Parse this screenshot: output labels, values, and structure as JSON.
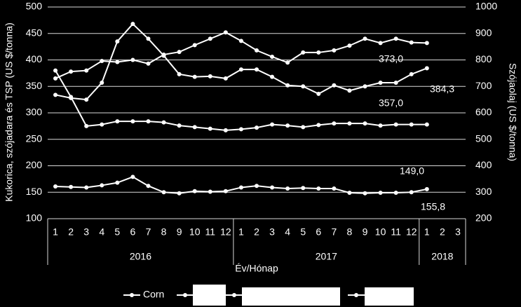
{
  "chart_data": {
    "type": "line",
    "y_label": "Kukorica, szójadara és TSP (US $/tonna)",
    "y2_label": "Szójaolaj (US $/tonna)",
    "x_label": "Év/Hónap",
    "categories": [
      "1",
      "2",
      "3",
      "4",
      "5",
      "6",
      "7",
      "8",
      "9",
      "10",
      "11",
      "12",
      "1",
      "2",
      "3",
      "4",
      "5",
      "6",
      "7",
      "8",
      "9",
      "10",
      "11",
      "12",
      "1",
      "2",
      "3"
    ],
    "x_groups": [
      "2016",
      "2017",
      "2018"
    ],
    "ylim": [
      100,
      500
    ],
    "yticks": [
      100,
      150,
      200,
      250,
      300,
      350,
      400,
      450,
      500
    ],
    "y2lim": [
      200,
      1000
    ],
    "y2ticks": [
      200,
      300,
      400,
      500,
      600,
      700,
      800,
      900,
      1000
    ],
    "grid": true,
    "series": [
      {
        "name": "Corn",
        "color": "#ffffff",
        "values": [
          161,
          160,
          159,
          163,
          168,
          179,
          162,
          150,
          148,
          152,
          151,
          152,
          159,
          162,
          159,
          157,
          158,
          157,
          157,
          149,
          148,
          149,
          149,
          150,
          155.8,
          null,
          null
        ]
      },
      {
        "color": "#ffffff",
        "values": [
          380,
          330,
          275,
          278,
          284,
          284,
          284,
          282,
          276,
          273,
          270,
          267,
          269,
          272,
          278,
          276,
          273,
          277,
          280,
          280,
          280,
          276,
          278,
          278,
          278,
          null,
          null
        ]
      },
      {
        "color": "#ffffff",
        "values": [
          334,
          328,
          325,
          357,
          435,
          468,
          440,
          408,
          373,
          368,
          369,
          365,
          382,
          382,
          368,
          352,
          350,
          336,
          352,
          342,
          350,
          357,
          357,
          373,
          384.3,
          null,
          null
        ]
      },
      {
        "color": "#ffffff",
        "axis": "y2",
        "values": [
          730,
          756,
          760,
          796,
          792,
          800,
          786,
          820,
          830,
          856,
          880,
          904,
          872,
          836,
          812,
          790,
          828,
          828,
          836,
          854,
          880,
          864,
          880,
          866,
          864,
          null,
          null
        ]
      }
    ],
    "annotations": [
      "373,0",
      "384,3",
      "357,0",
      "149,0",
      "155,8"
    ]
  }
}
